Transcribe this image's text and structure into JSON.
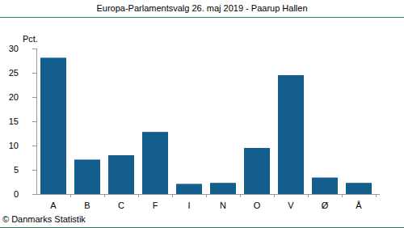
{
  "chart_data": {
    "type": "bar",
    "title": "Europa-Parlamentsvalg 26. maj 2019 - Paarup Hallen",
    "ylabel": "Pct.",
    "source": "© Danmarks Statistik",
    "categories": [
      "A",
      "B",
      "C",
      "F",
      "I",
      "N",
      "O",
      "V",
      "Ø",
      "Å"
    ],
    "values": [
      28.1,
      7.1,
      8.0,
      12.8,
      2.1,
      2.3,
      9.5,
      24.5,
      3.4,
      2.3
    ],
    "color": "#135e8c",
    "ylim": [
      0,
      30
    ],
    "yticks": [
      0,
      5,
      10,
      15,
      20,
      25,
      30
    ],
    "grid": false
  }
}
